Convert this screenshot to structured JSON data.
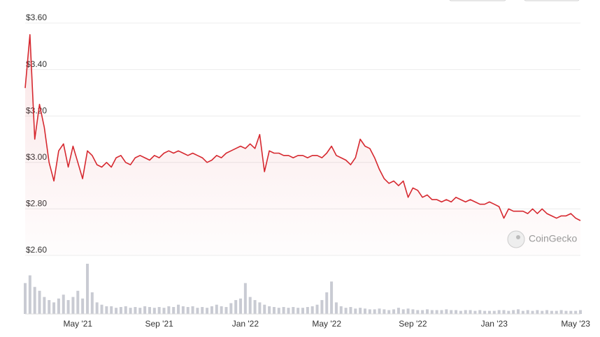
{
  "chart_data": {
    "type": "line",
    "color": "#d6282f",
    "volume_color": "#c9cbd3",
    "watermark": "CoinGecko",
    "ylim": [
      2.6,
      3.6
    ],
    "yticks": [
      {
        "value": 2.6,
        "label": "$2.60"
      },
      {
        "value": 2.8,
        "label": "$2.80"
      },
      {
        "value": 3.0,
        "label": "$3.00"
      },
      {
        "value": 3.2,
        "label": "$3.20"
      },
      {
        "value": 3.4,
        "label": "$3.40"
      },
      {
        "value": 3.6,
        "label": "$3.60"
      }
    ],
    "grid": true,
    "categories": [
      null,
      null,
      null,
      null,
      null,
      null,
      null,
      null,
      null,
      null,
      null,
      "May '21",
      null,
      null,
      null,
      null,
      null,
      null,
      null,
      null,
      null,
      null,
      null,
      null,
      null,
      null,
      null,
      null,
      "Sep '21",
      null,
      null,
      null,
      null,
      null,
      null,
      null,
      null,
      null,
      null,
      null,
      null,
      null,
      null,
      null,
      null,
      null,
      "Jan '22",
      null,
      null,
      null,
      null,
      null,
      null,
      null,
      null,
      null,
      null,
      null,
      null,
      null,
      null,
      null,
      null,
      "May '22",
      null,
      null,
      null,
      null,
      null,
      null,
      null,
      null,
      null,
      null,
      null,
      null,
      null,
      null,
      null,
      null,
      null,
      "Sep '22",
      null,
      null,
      null,
      null,
      null,
      null,
      null,
      null,
      null,
      null,
      null,
      null,
      null,
      null,
      null,
      null,
      "Jan '23",
      null,
      null,
      null,
      null,
      null,
      null,
      null,
      null,
      null,
      null,
      null,
      null,
      null,
      null,
      null,
      null,
      "May '23",
      null
    ],
    "values": [
      3.32,
      3.55,
      3.1,
      3.25,
      3.15,
      3.0,
      2.92,
      3.05,
      3.08,
      2.98,
      3.07,
      3.0,
      2.93,
      3.05,
      3.03,
      2.99,
      2.98,
      3.0,
      2.98,
      3.02,
      3.03,
      3.0,
      2.99,
      3.02,
      3.03,
      3.02,
      3.01,
      3.03,
      3.02,
      3.04,
      3.05,
      3.04,
      3.05,
      3.04,
      3.03,
      3.04,
      3.03,
      3.02,
      3.0,
      3.01,
      3.03,
      3.02,
      3.04,
      3.05,
      3.06,
      3.07,
      3.06,
      3.08,
      3.06,
      3.12,
      2.96,
      3.05,
      3.04,
      3.04,
      3.03,
      3.03,
      3.02,
      3.03,
      3.03,
      3.02,
      3.03,
      3.03,
      3.02,
      3.04,
      3.07,
      3.03,
      3.02,
      3.01,
      2.99,
      3.02,
      3.1,
      3.07,
      3.06,
      3.02,
      2.97,
      2.93,
      2.91,
      2.92,
      2.9,
      2.92,
      2.85,
      2.89,
      2.88,
      2.85,
      2.86,
      2.84,
      2.84,
      2.83,
      2.84,
      2.83,
      2.85,
      2.84,
      2.83,
      2.84,
      2.83,
      2.82,
      2.82,
      2.83,
      2.82,
      2.81,
      2.76,
      2.8,
      2.79,
      2.79,
      2.79,
      2.78,
      2.8,
      2.78,
      2.8,
      2.78,
      2.77,
      2.76,
      2.77,
      2.77,
      2.78,
      2.76,
      2.75
    ],
    "volume_values": [
      40,
      50,
      35,
      30,
      22,
      18,
      15,
      20,
      25,
      18,
      22,
      30,
      20,
      65,
      28,
      15,
      12,
      10,
      10,
      8,
      9,
      10,
      8,
      9,
      8,
      10,
      9,
      8,
      9,
      8,
      10,
      9,
      12,
      10,
      9,
      10,
      8,
      9,
      8,
      10,
      12,
      10,
      9,
      14,
      18,
      20,
      40,
      22,
      18,
      15,
      12,
      10,
      9,
      8,
      9,
      8,
      9,
      8,
      8,
      9,
      10,
      12,
      18,
      28,
      42,
      15,
      10,
      8,
      9,
      7,
      8,
      7,
      6,
      6,
      7,
      6,
      5,
      6,
      8,
      6,
      7,
      6,
      5,
      5,
      6,
      5,
      5,
      5,
      6,
      5,
      5,
      4,
      5,
      5,
      4,
      5,
      4,
      4,
      4,
      5,
      5,
      4,
      5,
      6,
      4,
      5,
      4,
      5,
      4,
      5,
      4,
      4,
      5,
      4,
      4,
      4,
      5
    ]
  }
}
